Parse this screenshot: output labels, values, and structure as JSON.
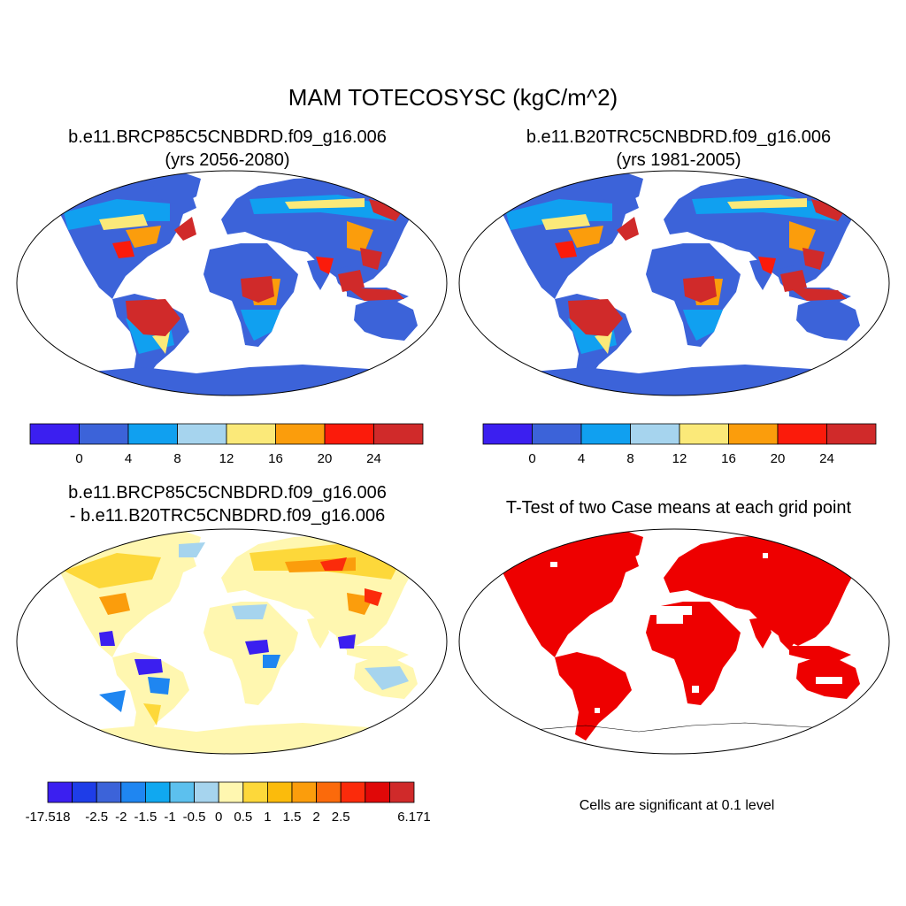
{
  "title": "MAM TOTECOSYSC (kgC/m^2)",
  "panels": [
    {
      "id": "case1",
      "title_lines": [
        "b.e11.BRCP85C5CNBDRD.f09_g16.006",
        "(yrs 2056-2080)"
      ]
    },
    {
      "id": "case2",
      "title_lines": [
        "b.e11.B20TRC5CNBDRD.f09_g16.006",
        "(yrs 1981-2005)"
      ]
    },
    {
      "id": "diff",
      "title_lines": [
        "b.e11.BRCP85C5CNBDRD.f09_g16.006",
        "- b.e11.B20TRC5CNBDRD.f09_g16.006"
      ]
    },
    {
      "id": "ttest",
      "title_lines": [
        "T-Test of two Case means at each grid point"
      ]
    }
  ],
  "colorbars": {
    "abs": {
      "colors": [
        "#3b1ff0",
        "#3c63d9",
        "#10a0f0",
        "#a6d4ee",
        "#fbe979",
        "#fb9d0c",
        "#fb1b0b",
        "#d02a2a"
      ],
      "tick_labels": [
        "0",
        "4",
        "8",
        "12",
        "16",
        "20",
        "24"
      ]
    },
    "diff": {
      "colors": [
        "#3b1ff0",
        "#1e3de8",
        "#3c63d9",
        "#1f86f1",
        "#10a8f0",
        "#5cc0ee",
        "#a6d4ee",
        "#fff7b0",
        "#fdd83a",
        "#fbbb0c",
        "#fb9d0c",
        "#fb6a0b",
        "#fb2b0b",
        "#e00808",
        "#d02a2a"
      ],
      "tick_labels": [
        "-17.518",
        "-2.5",
        "-2",
        "-1.5",
        "-1",
        "-0.5",
        "0",
        "0.5",
        "1",
        "1.5",
        "2",
        "2.5",
        "6.171"
      ]
    }
  },
  "ttest_note": "Cells are significant at 0.1 level",
  "map_colors": {
    "land_abs": "#3c63d9",
    "tropic_abs": "#d02a2a",
    "midlat_abs": "#10a0f0",
    "land_diff": "#fbe979",
    "signif": "#ee0000"
  }
}
